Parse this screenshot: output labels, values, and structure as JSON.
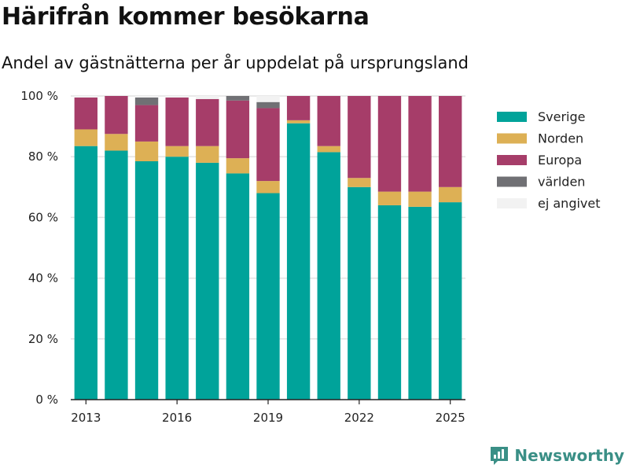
{
  "header": {
    "title": "Härifrån kommer besökarna",
    "subtitle": "Andel av gästnätterna per år uppdelat på ursprungsland"
  },
  "brand": {
    "name": "Newsworthy",
    "icon": "newsworthy-logo-icon",
    "color": "#3a8f86"
  },
  "chart_data": {
    "type": "bar",
    "stacked": true,
    "title": "Härifrån kommer besökarna",
    "subtitle": "Andel av gästnätterna per år uppdelat på ursprungsland",
    "xlabel": "",
    "ylabel": "",
    "categories": [
      "2013",
      "2014",
      "2015",
      "2016",
      "2017",
      "2018",
      "2019",
      "2020",
      "2021",
      "2022",
      "2023",
      "2024",
      "2025"
    ],
    "x_tick_labels": [
      "2013",
      "2016",
      "2019",
      "2022",
      "2025"
    ],
    "y_ticks": [
      0,
      20,
      40,
      60,
      80,
      100
    ],
    "y_tick_suffix": " %",
    "ylim": [
      0,
      100
    ],
    "grid": true,
    "legend_position": "right",
    "series": [
      {
        "name": "Sverige",
        "color": "#00a39a",
        "values": [
          83.5,
          82,
          78.5,
          80,
          78,
          74.5,
          68,
          91,
          81.5,
          70,
          64,
          63.5,
          65
        ]
      },
      {
        "name": "Norden",
        "color": "#ddb055",
        "values": [
          5.5,
          5.5,
          6.5,
          3.5,
          5.5,
          5,
          4,
          1,
          2,
          3,
          4.5,
          5,
          5
        ]
      },
      {
        "name": "Europa",
        "color": "#a63d69",
        "values": [
          10.5,
          12.5,
          12,
          16,
          15.5,
          19,
          24,
          8,
          16.5,
          27,
          31.5,
          31.5,
          30
        ]
      },
      {
        "name": "världen",
        "color": "#707074",
        "values": [
          0,
          0,
          2.5,
          0,
          0,
          1.5,
          2,
          0,
          0,
          0,
          0,
          0,
          0
        ]
      },
      {
        "name": "ej angivet",
        "color": "#f2f2f2",
        "values": [
          0.5,
          0,
          0.5,
          0.5,
          1,
          0,
          2,
          0,
          0,
          0,
          0,
          0,
          0
        ]
      }
    ]
  }
}
